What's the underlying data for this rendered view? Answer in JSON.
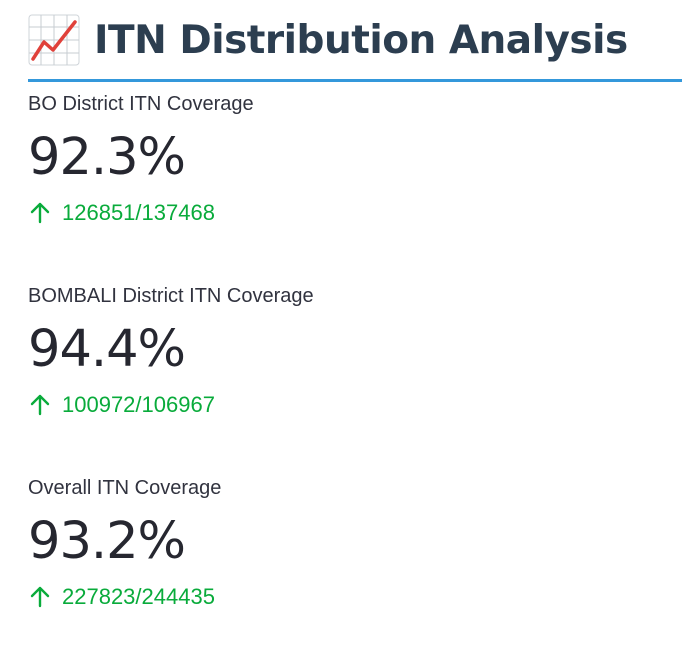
{
  "header": {
    "icon": "chart-increasing-icon",
    "title": "ITN Distribution Analysis",
    "accent_color": "#3498db"
  },
  "metrics": [
    {
      "label": "BO District ITN Coverage",
      "value": "92.3%",
      "delta": "126851/137468",
      "delta_direction": "up",
      "delta_color": "#09ab3b"
    },
    {
      "label": "BOMBALI District ITN Coverage",
      "value": "94.4%",
      "delta": "100972/106967",
      "delta_direction": "up",
      "delta_color": "#09ab3b"
    },
    {
      "label": "Overall ITN Coverage",
      "value": "93.2%",
      "delta": "227823/244435",
      "delta_direction": "up",
      "delta_color": "#09ab3b"
    }
  ]
}
